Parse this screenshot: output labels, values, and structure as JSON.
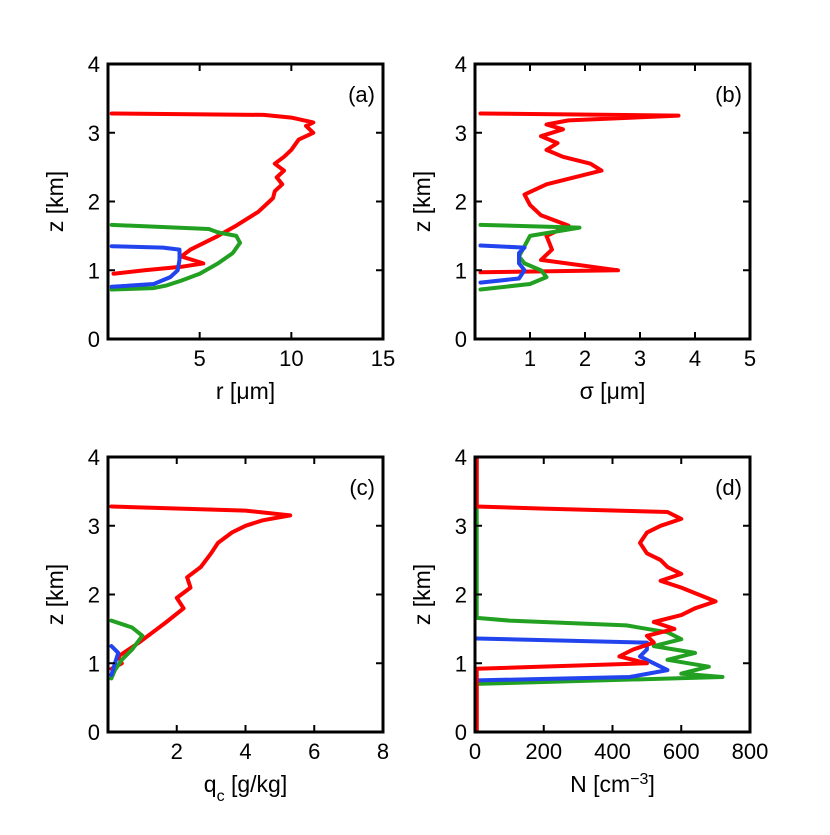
{
  "colors": {
    "red": "#ff0000",
    "green": "#22a022",
    "blue": "#2244ee",
    "axis": "#000000"
  },
  "chart_data": [
    {
      "type": "line",
      "panel_label": "(a)",
      "ylabel": "z [km]",
      "xlabel_main": "r [",
      "xlabel_symbol": "μ",
      "xlabel_rest": "m]",
      "xlim": [
        0,
        15
      ],
      "ylim": [
        0,
        4
      ],
      "xticks": [
        5,
        10,
        15
      ],
      "yticks": [
        0,
        1,
        2,
        3,
        4
      ],
      "series": [
        {
          "name": "red",
          "color": "red",
          "points": [
            [
              0.3,
              0.95
            ],
            [
              2,
              1.0
            ],
            [
              4,
              1.05
            ],
            [
              5.2,
              1.1
            ],
            [
              4.6,
              1.15
            ],
            [
              4.0,
              1.2
            ],
            [
              4.5,
              1.3
            ],
            [
              6,
              1.5
            ],
            [
              7,
              1.65
            ],
            [
              8.2,
              1.85
            ],
            [
              9.0,
              2.05
            ],
            [
              9.1,
              2.15
            ],
            [
              9.5,
              2.25
            ],
            [
              9.2,
              2.35
            ],
            [
              9.6,
              2.45
            ],
            [
              9.1,
              2.55
            ],
            [
              9.6,
              2.65
            ],
            [
              10.0,
              2.75
            ],
            [
              10.4,
              2.9
            ],
            [
              11.2,
              3.0
            ],
            [
              10.8,
              3.1
            ],
            [
              11.2,
              3.15
            ],
            [
              10.0,
              3.22
            ],
            [
              8.5,
              3.26
            ],
            [
              0.2,
              3.28
            ]
          ]
        },
        {
          "name": "green",
          "color": "green",
          "points": [
            [
              0.2,
              0.72
            ],
            [
              2.5,
              0.74
            ],
            [
              3.2,
              0.78
            ],
            [
              4.0,
              0.85
            ],
            [
              5.0,
              0.95
            ],
            [
              6.0,
              1.1
            ],
            [
              6.8,
              1.25
            ],
            [
              7.2,
              1.4
            ],
            [
              7.0,
              1.5
            ],
            [
              6.0,
              1.55
            ],
            [
              5.5,
              1.6
            ],
            [
              2,
              1.64
            ],
            [
              0.2,
              1.66
            ]
          ]
        },
        {
          "name": "blue",
          "color": "blue",
          "points": [
            [
              0.2,
              0.76
            ],
            [
              2.5,
              0.8
            ],
            [
              3.4,
              0.9
            ],
            [
              3.8,
              1.0
            ],
            [
              3.9,
              1.15
            ],
            [
              3.9,
              1.3
            ],
            [
              3.0,
              1.33
            ],
            [
              0.2,
              1.35
            ]
          ]
        }
      ]
    },
    {
      "type": "line",
      "panel_label": "(b)",
      "ylabel": "z [km]",
      "xlabel_main": "",
      "xlabel_symbol": "σ",
      "xlabel_rest": " [μm]",
      "xlim": [
        0,
        5
      ],
      "ylim": [
        0,
        4
      ],
      "xticks": [
        1,
        2,
        3,
        4,
        5
      ],
      "yticks": [
        0,
        1,
        2,
        3,
        4
      ],
      "series": [
        {
          "name": "red",
          "color": "red",
          "points": [
            [
              0.1,
              0.97
            ],
            [
              2.6,
              1.0
            ],
            [
              1.2,
              1.15
            ],
            [
              1.4,
              1.3
            ],
            [
              1.3,
              1.5
            ],
            [
              1.7,
              1.65
            ],
            [
              1.2,
              1.8
            ],
            [
              1.0,
              1.95
            ],
            [
              0.9,
              2.1
            ],
            [
              1.3,
              2.25
            ],
            [
              1.8,
              2.35
            ],
            [
              2.3,
              2.45
            ],
            [
              2.1,
              2.55
            ],
            [
              1.6,
              2.65
            ],
            [
              1.3,
              2.75
            ],
            [
              1.5,
              2.85
            ],
            [
              1.2,
              2.95
            ],
            [
              1.6,
              3.05
            ],
            [
              1.3,
              3.12
            ],
            [
              1.7,
              3.18
            ],
            [
              3.7,
              3.25
            ],
            [
              0.1,
              3.28
            ]
          ]
        },
        {
          "name": "green",
          "color": "green",
          "points": [
            [
              0.1,
              0.72
            ],
            [
              1.0,
              0.8
            ],
            [
              1.3,
              0.9
            ],
            [
              1.2,
              1.0
            ],
            [
              0.9,
              1.1
            ],
            [
              0.8,
              1.2
            ],
            [
              0.9,
              1.35
            ],
            [
              1.0,
              1.5
            ],
            [
              1.9,
              1.62
            ],
            [
              0.1,
              1.66
            ]
          ]
        },
        {
          "name": "blue",
          "color": "blue",
          "points": [
            [
              0.1,
              0.82
            ],
            [
              0.8,
              0.88
            ],
            [
              0.9,
              1.0
            ],
            [
              0.8,
              1.1
            ],
            [
              0.8,
              1.25
            ],
            [
              0.9,
              1.33
            ],
            [
              0.1,
              1.36
            ]
          ]
        }
      ]
    },
    {
      "type": "line",
      "panel_label": "(c)",
      "ylabel": "z [km]",
      "xlabel_main": "q",
      "xlabel_sub": "c",
      "xlabel_rest": " [g/kg]",
      "xlim": [
        0,
        8
      ],
      "ylim": [
        0,
        4
      ],
      "xticks": [
        2,
        4,
        6,
        8
      ],
      "yticks": [
        0,
        1,
        2,
        3,
        4
      ],
      "series": [
        {
          "name": "red",
          "color": "red",
          "points": [
            [
              0.1,
              0.92
            ],
            [
              0.4,
              1.0
            ],
            [
              0.3,
              1.1
            ],
            [
              0.6,
              1.2
            ],
            [
              0.9,
              1.3
            ],
            [
              1.3,
              1.45
            ],
            [
              1.7,
              1.6
            ],
            [
              2.2,
              1.8
            ],
            [
              2.0,
              1.95
            ],
            [
              2.4,
              2.1
            ],
            [
              2.3,
              2.25
            ],
            [
              2.7,
              2.4
            ],
            [
              3.0,
              2.6
            ],
            [
              3.2,
              2.75
            ],
            [
              3.6,
              2.9
            ],
            [
              4.0,
              3.0
            ],
            [
              4.5,
              3.08
            ],
            [
              5.3,
              3.15
            ],
            [
              4.0,
              3.22
            ],
            [
              0.1,
              3.28
            ]
          ]
        },
        {
          "name": "green",
          "color": "green",
          "points": [
            [
              0.1,
              0.78
            ],
            [
              0.2,
              0.9
            ],
            [
              0.4,
              1.05
            ],
            [
              0.7,
              1.2
            ],
            [
              1.0,
              1.4
            ],
            [
              0.7,
              1.52
            ],
            [
              0.1,
              1.62
            ]
          ]
        },
        {
          "name": "blue",
          "color": "blue",
          "points": [
            [
              0.1,
              0.83
            ],
            [
              0.2,
              1.0
            ],
            [
              0.3,
              1.15
            ],
            [
              0.1,
              1.25
            ]
          ]
        }
      ]
    },
    {
      "type": "line",
      "panel_label": "(d)",
      "ylabel": "z [km]",
      "xlabel_main": "N [cm",
      "xlabel_sup": "−3",
      "xlabel_rest": "]",
      "xlim": [
        0,
        800
      ],
      "ylim": [
        0,
        4
      ],
      "xticks": [
        0,
        200,
        400,
        600,
        800
      ],
      "yticks": [
        0,
        1,
        2,
        3,
        4
      ],
      "series": [
        {
          "name": "green",
          "color": "green",
          "points": [
            [
              5,
              0.0
            ],
            [
              5,
              0.7
            ],
            [
              720,
              0.8
            ],
            [
              600,
              0.85
            ],
            [
              680,
              0.95
            ],
            [
              560,
              1.05
            ],
            [
              640,
              1.15
            ],
            [
              520,
              1.25
            ],
            [
              600,
              1.35
            ],
            [
              560,
              1.45
            ],
            [
              440,
              1.55
            ],
            [
              100,
              1.62
            ],
            [
              5,
              1.66
            ],
            [
              5,
              3.3
            ],
            [
              5,
              4.0
            ]
          ]
        },
        {
          "name": "blue",
          "color": "blue",
          "points": [
            [
              5,
              0.75
            ],
            [
              450,
              0.8
            ],
            [
              560,
              0.9
            ],
            [
              520,
              1.0
            ],
            [
              480,
              1.1
            ],
            [
              500,
              1.2
            ],
            [
              500,
              1.3
            ],
            [
              5,
              1.36
            ]
          ]
        },
        {
          "name": "red",
          "color": "red",
          "points": [
            [
              5,
              0.0
            ],
            [
              5,
              0.92
            ],
            [
              500,
              1.0
            ],
            [
              420,
              1.1
            ],
            [
              460,
              1.2
            ],
            [
              520,
              1.3
            ],
            [
              500,
              1.4
            ],
            [
              580,
              1.5
            ],
            [
              520,
              1.6
            ],
            [
              600,
              1.7
            ],
            [
              640,
              1.8
            ],
            [
              700,
              1.9
            ],
            [
              650,
              2.0
            ],
            [
              600,
              2.1
            ],
            [
              540,
              2.2
            ],
            [
              600,
              2.3
            ],
            [
              560,
              2.4
            ],
            [
              540,
              2.5
            ],
            [
              500,
              2.6
            ],
            [
              480,
              2.75
            ],
            [
              500,
              2.9
            ],
            [
              540,
              3.0
            ],
            [
              600,
              3.1
            ],
            [
              560,
              3.2
            ],
            [
              200,
              3.25
            ],
            [
              5,
              3.28
            ],
            [
              5,
              4.0
            ]
          ]
        }
      ]
    }
  ]
}
